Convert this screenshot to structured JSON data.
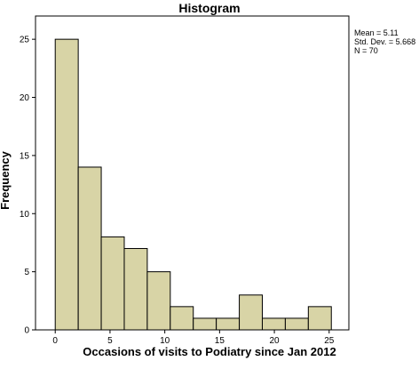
{
  "chart_data": {
    "type": "bar",
    "title": "Histogram",
    "xlabel": "Occasions of visits to Podiatry since Jan 2012",
    "ylabel": "Frequency",
    "bin_width": 2.1,
    "bins": [
      {
        "start": 0.0,
        "end": 2.1,
        "value": 25
      },
      {
        "start": 2.1,
        "end": 4.2,
        "value": 14
      },
      {
        "start": 4.2,
        "end": 6.3,
        "value": 8
      },
      {
        "start": 6.3,
        "end": 8.4,
        "value": 7
      },
      {
        "start": 8.4,
        "end": 10.5,
        "value": 5
      },
      {
        "start": 10.5,
        "end": 12.6,
        "value": 2
      },
      {
        "start": 12.6,
        "end": 14.7,
        "value": 1
      },
      {
        "start": 14.7,
        "end": 16.8,
        "value": 1
      },
      {
        "start": 16.8,
        "end": 18.9,
        "value": 3
      },
      {
        "start": 18.9,
        "end": 21.0,
        "value": 1
      },
      {
        "start": 21.0,
        "end": 23.1,
        "value": 1
      },
      {
        "start": 23.1,
        "end": 25.2,
        "value": 2
      }
    ],
    "xlim": [
      -1.8,
      26.8
    ],
    "ylim": [
      0,
      27
    ],
    "x_ticks": [
      0,
      5,
      10,
      15,
      20,
      25
    ],
    "y_ticks": [
      0,
      5,
      10,
      15,
      20,
      25
    ],
    "grid": false,
    "bar_color": "#d8d4a6",
    "bar_edge_color": "#000000",
    "plot_background": "#ffffff",
    "stats": {
      "mean": "Mean = 5.11",
      "std_dev": "Std. Dev. = 5.668",
      "n": "N = 70"
    }
  }
}
